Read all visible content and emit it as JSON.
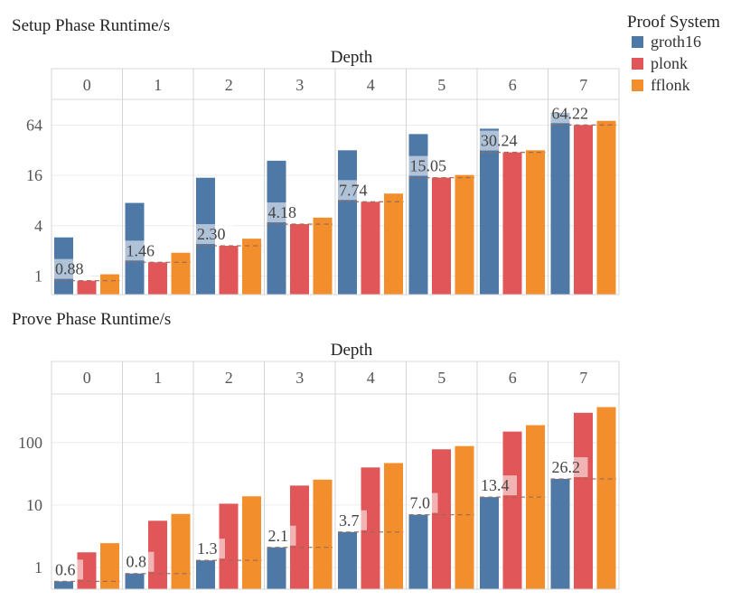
{
  "legend": {
    "title": "Proof System",
    "items": [
      {
        "label": "groth16",
        "color": "#4e79a7"
      },
      {
        "label": "plonk",
        "color": "#e15759"
      },
      {
        "label": "fflonk",
        "color": "#f28e2b"
      }
    ]
  },
  "chart_data": [
    {
      "type": "bar",
      "title": "Setup Phase Runtime/s",
      "facet_label": "Depth",
      "scale": "log",
      "ylim": [
        0.6,
        130
      ],
      "yticks": [
        1,
        4,
        16,
        64
      ],
      "ytick_labels": [
        "1",
        "4",
        "16",
        "64"
      ],
      "categories": [
        "0",
        "1",
        "2",
        "3",
        "4",
        "5",
        "6",
        "7"
      ],
      "series": [
        {
          "name": "groth16",
          "values": [
            2.9,
            7.5,
            15,
            24,
            32,
            50,
            58,
            90
          ]
        },
        {
          "name": "plonk",
          "values": [
            0.88,
            1.46,
            2.3,
            4.18,
            7.74,
            15.05,
            30.24,
            64.22
          ]
        },
        {
          "name": "fflonk",
          "values": [
            1.05,
            1.9,
            2.8,
            5.0,
            9.7,
            16.2,
            32,
            72
          ]
        }
      ],
      "annotations": [
        "0.88",
        "1.46",
        "2.30",
        "4.18",
        "7.74",
        "15.05",
        "30.24",
        "64.22"
      ],
      "annotation_values": [
        0.88,
        1.46,
        2.3,
        4.18,
        7.74,
        15.05,
        30.24,
        64.22
      ]
    },
    {
      "type": "bar",
      "title": "Prove Phase Runtime/s",
      "facet_label": "Depth",
      "scale": "log",
      "ylim": [
        0.45,
        600
      ],
      "yticks": [
        1,
        10,
        100
      ],
      "ytick_labels": [
        "1",
        "10",
        "100"
      ],
      "categories": [
        "0",
        "1",
        "2",
        "3",
        "4",
        "5",
        "6",
        "7"
      ],
      "series": [
        {
          "name": "groth16",
          "values": [
            0.6,
            0.8,
            1.3,
            2.1,
            3.7,
            7.0,
            13.4,
            26.2
          ]
        },
        {
          "name": "plonk",
          "values": [
            1.75,
            5.6,
            10.5,
            20.5,
            40,
            78,
            150,
            300
          ]
        },
        {
          "name": "fflonk",
          "values": [
            2.45,
            7.2,
            13.8,
            25.5,
            47,
            88,
            190,
            370
          ]
        }
      ],
      "annotations": [
        "0.6",
        "0.8",
        "1.3",
        "2.1",
        "3.7",
        "7.0",
        "13.4",
        "26.2"
      ],
      "annotation_values": [
        0.6,
        0.8,
        1.3,
        2.1,
        3.7,
        7.0,
        13.4,
        26.2
      ]
    }
  ]
}
